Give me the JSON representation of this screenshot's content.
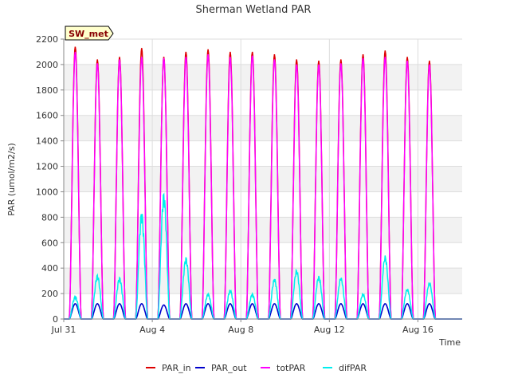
{
  "chart_data": {
    "type": "line",
    "title": "Sherman Wetland PAR",
    "site_tag": "SW_met",
    "xlabel": "Time",
    "ylabel": "PAR (umol/m2/s)",
    "x_tick_labels": [
      "Jul 31",
      "Aug 4",
      "Aug 8",
      "Aug 12",
      "Aug 16"
    ],
    "x_tick_days": [
      0,
      4,
      8,
      12,
      16
    ],
    "xlim_days_from_jul31": [
      0,
      18
    ],
    "ylim": [
      0,
      2200
    ],
    "y_ticks": [
      0,
      200,
      400,
      600,
      800,
      1000,
      1200,
      1400,
      1600,
      1800,
      2000,
      2200
    ],
    "grid": true,
    "legend_position": "bottom",
    "days": [
      "Jul 31",
      "Aug 1",
      "Aug 2",
      "Aug 3",
      "Aug 4",
      "Aug 5",
      "Aug 6",
      "Aug 7",
      "Aug 8",
      "Aug 9",
      "Aug 10",
      "Aug 11",
      "Aug 12",
      "Aug 13",
      "Aug 14",
      "Aug 15",
      "Aug 16",
      "Aug 17"
    ],
    "series": [
      {
        "name": "PAR_in",
        "color": "#dd0000",
        "daily_peak": [
          2140,
          2040,
          2060,
          2130,
          2060,
          2100,
          2120,
          2100,
          2100,
          2080,
          2040,
          2030,
          2040,
          2080,
          2110,
          2060,
          2030,
          0
        ]
      },
      {
        "name": "PAR_out",
        "color": "#0000cc",
        "daily_peak": [
          120,
          120,
          120,
          120,
          110,
          120,
          120,
          120,
          120,
          120,
          120,
          120,
          120,
          120,
          120,
          120,
          120,
          0
        ]
      },
      {
        "name": "totPAR",
        "color": "#ff00ff",
        "daily_peak": [
          2100,
          2010,
          2040,
          2060,
          2050,
          2060,
          2080,
          2060,
          2070,
          2040,
          2000,
          2000,
          2010,
          2050,
          2060,
          2030,
          2000,
          0
        ]
      },
      {
        "name": "difPAR",
        "color": "#00eeee",
        "daily_peak": [
          180,
          350,
          330,
          850,
          1000,
          490,
          200,
          230,
          200,
          320,
          390,
          340,
          330,
          200,
          500,
          240,
          290,
          0
        ]
      }
    ]
  }
}
